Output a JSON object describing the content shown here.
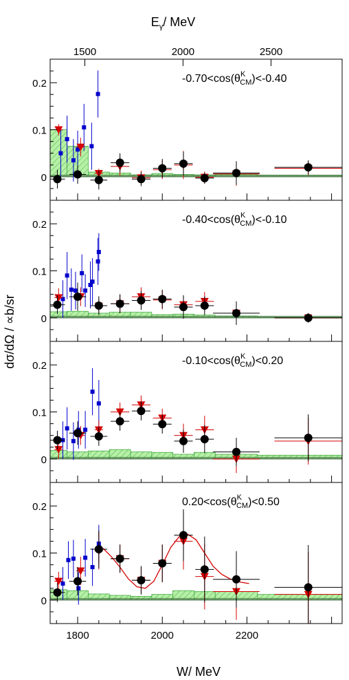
{
  "figure": {
    "top_axis_label": "E_γ / MeV",
    "x_label": "W/ MeV",
    "y_label": "dσ/dΩ / ∝b/sr"
  },
  "chart_data": {
    "type": "scatter",
    "x_axis": {
      "label": "W/ MeV",
      "range": [
        1735,
        2425
      ],
      "ticks": [
        1800,
        2000,
        2200
      ]
    },
    "top_axis": {
      "label": "E_γ / MeV",
      "ticks": [
        1500,
        2000,
        2500
      ],
      "tick_positions_W": [
        1817,
        2049,
        2257
      ]
    },
    "y_axis": {
      "label": "dσ/dΩ / ∝b/sr",
      "range": [
        -0.05,
        0.25
      ],
      "ticks": [
        0,
        0.1,
        0.2
      ]
    },
    "colors": {
      "black": "#000000",
      "red": "#d40000",
      "blue": "#0000cc",
      "green_fill": "#b6f0a6",
      "green_edge": "#44aa44",
      "dark_band": "#3b6b3b",
      "curve": "#d40000"
    },
    "panels": [
      {
        "label": "-0.70<cos(θ^K_CM)<-0.40",
        "label_parts": [
          "-0.70<cos(θ",
          "K",
          "CM",
          ")<-0.40"
        ],
        "black": [
          {
            "x": 1752,
            "y": -0.005,
            "xe": 18,
            "ye": 0.02
          },
          {
            "x": 1800,
            "y": 0.005,
            "xe": 20,
            "ye": 0.02
          },
          {
            "x": 1850,
            "y": -0.007,
            "xe": 20,
            "ye": 0.02
          },
          {
            "x": 1900,
            "y": 0.03,
            "xe": 22,
            "ye": 0.02
          },
          {
            "x": 1950,
            "y": -0.005,
            "xe": 22,
            "ye": 0.015
          },
          {
            "x": 2000,
            "y": 0.018,
            "xe": 22,
            "ye": 0.02
          },
          {
            "x": 2050,
            "y": 0.028,
            "xe": 22,
            "ye": 0.025
          },
          {
            "x": 2100,
            "y": -0.003,
            "xe": 22,
            "ye": 0.012
          },
          {
            "x": 2175,
            "y": 0.008,
            "xe": 55,
            "ye": 0.025
          },
          {
            "x": 2345,
            "y": 0.02,
            "xe": 80,
            "ye": 0.015
          }
        ],
        "red": [
          {
            "x": 1755,
            "y": 0.1,
            "xe": 10,
            "ye": 0.012
          },
          {
            "x": 1807,
            "y": 0.063,
            "xe": 10,
            "ye": 0.02
          },
          {
            "x": 1850,
            "y": 0.007,
            "xe": 10,
            "ye": 0.01
          },
          {
            "x": 1900,
            "y": 0.022,
            "xe": 22,
            "ye": 0.02
          },
          {
            "x": 1950,
            "y": -0.002,
            "xe": 22,
            "ye": 0.015
          },
          {
            "x": 2000,
            "y": 0.015,
            "xe": 22,
            "ye": 0.02
          },
          {
            "x": 2050,
            "y": 0.025,
            "xe": 22,
            "ye": 0.03
          },
          {
            "x": 2100,
            "y": -0.001,
            "xe": 22,
            "ye": 0.012
          },
          {
            "x": 2175,
            "y": 0.006,
            "xe": 55,
            "ye": 0.025
          },
          {
            "x": 2345,
            "y": 0.018,
            "xe": 80,
            "ye": 0.015
          }
        ],
        "blue": [
          {
            "x": 1760,
            "y": 0.05,
            "ye": 0.05
          },
          {
            "x": 1775,
            "y": 0.08,
            "ye": 0.05
          },
          {
            "x": 1790,
            "y": 0.035,
            "ye": 0.045
          },
          {
            "x": 1800,
            "y": 0.058,
            "ye": 0.04
          },
          {
            "x": 1815,
            "y": 0.105,
            "ye": 0.05
          },
          {
            "x": 1833,
            "y": 0.065,
            "ye": 0.05
          },
          {
            "x": 1848,
            "y": 0.176,
            "ye": 0.05
          }
        ],
        "band": [
          {
            "x0": 1735,
            "x1": 1775,
            "y": 0.1
          },
          {
            "x0": 1775,
            "x1": 1825,
            "y": 0.065
          },
          {
            "x0": 1825,
            "x1": 1875,
            "y": 0.01
          },
          {
            "x0": 1875,
            "x1": 1925,
            "y": 0.008
          },
          {
            "x0": 1925,
            "x1": 1975,
            "y": 0.004
          },
          {
            "x0": 1975,
            "x1": 2025,
            "y": 0.007
          },
          {
            "x0": 2025,
            "x1": 2075,
            "y": 0.005
          },
          {
            "x0": 2075,
            "x1": 2125,
            "y": 0.004
          },
          {
            "x0": 2125,
            "x1": 2225,
            "y": 0.005
          },
          {
            "x0": 2225,
            "x1": 2425,
            "y": 0.003
          }
        ],
        "curve": []
      },
      {
        "label": "-0.40<cos(θ^K_CM)<-0.10",
        "label_parts": [
          "-0.40<cos(θ",
          "K",
          "CM",
          ")<-0.10"
        ],
        "black": [
          {
            "x": 1752,
            "y": 0.028,
            "xe": 18,
            "ye": 0.02
          },
          {
            "x": 1800,
            "y": 0.045,
            "xe": 20,
            "ye": 0.03
          },
          {
            "x": 1850,
            "y": 0.026,
            "xe": 20,
            "ye": 0.02
          },
          {
            "x": 1900,
            "y": 0.03,
            "xe": 22,
            "ye": 0.02
          },
          {
            "x": 1950,
            "y": 0.037,
            "xe": 22,
            "ye": 0.02
          },
          {
            "x": 2000,
            "y": 0.04,
            "xe": 22,
            "ye": 0.02
          },
          {
            "x": 2050,
            "y": 0.023,
            "xe": 22,
            "ye": 0.025
          },
          {
            "x": 2100,
            "y": 0.026,
            "xe": 22,
            "ye": 0.02
          },
          {
            "x": 2175,
            "y": 0.01,
            "xe": 55,
            "ye": 0.025
          },
          {
            "x": 2345,
            "y": 0.0,
            "xe": 80,
            "ye": 0.01
          }
        ],
        "red": [
          {
            "x": 1755,
            "y": 0.043,
            "xe": 10,
            "ye": 0.02
          },
          {
            "x": 1807,
            "y": 0.045,
            "xe": 10,
            "ye": 0.02
          },
          {
            "x": 1850,
            "y": 0.025,
            "xe": 10,
            "ye": 0.015
          },
          {
            "x": 1900,
            "y": 0.03,
            "xe": 22,
            "ye": 0.02
          },
          {
            "x": 1950,
            "y": 0.045,
            "xe": 22,
            "ye": 0.02
          },
          {
            "x": 2000,
            "y": 0.038,
            "xe": 22,
            "ye": 0.02
          },
          {
            "x": 2050,
            "y": 0.028,
            "xe": 22,
            "ye": 0.02
          },
          {
            "x": 2100,
            "y": 0.035,
            "xe": 22,
            "ye": 0.02
          },
          {
            "x": 2175,
            "y": 0.01,
            "xe": 55,
            "ye": 0.025
          },
          {
            "x": 2345,
            "y": 0.0,
            "xe": 80,
            "ye": 0.01
          }
        ],
        "blue": [
          {
            "x": 1765,
            "y": 0.04,
            "ye": 0.04
          },
          {
            "x": 1775,
            "y": 0.09,
            "ye": 0.05
          },
          {
            "x": 1785,
            "y": 0.06,
            "ye": 0.045
          },
          {
            "x": 1795,
            "y": 0.058,
            "ye": 0.04
          },
          {
            "x": 1810,
            "y": 0.095,
            "ye": 0.04
          },
          {
            "x": 1818,
            "y": 0.058,
            "ye": 0.035
          },
          {
            "x": 1830,
            "y": 0.07,
            "ye": 0.05
          },
          {
            "x": 1835,
            "y": 0.077,
            "ye": 0.05
          },
          {
            "x": 1848,
            "y": 0.12,
            "ye": 0.05
          },
          {
            "x": 1850,
            "y": 0.14,
            "ye": 0.04
          }
        ],
        "band": [
          {
            "x0": 1735,
            "x1": 1775,
            "y": 0.013
          },
          {
            "x0": 1775,
            "x1": 1825,
            "y": 0.014
          },
          {
            "x0": 1825,
            "x1": 1875,
            "y": 0.01
          },
          {
            "x0": 1875,
            "x1": 1925,
            "y": 0.012
          },
          {
            "x0": 1925,
            "x1": 1975,
            "y": 0.012
          },
          {
            "x0": 1975,
            "x1": 2025,
            "y": 0.007
          },
          {
            "x0": 2025,
            "x1": 2075,
            "y": 0.008
          },
          {
            "x0": 2075,
            "x1": 2125,
            "y": 0.006
          },
          {
            "x0": 2125,
            "x1": 2225,
            "y": 0.004
          },
          {
            "x0": 2225,
            "x1": 2425,
            "y": 0.002
          }
        ],
        "curve": []
      },
      {
        "label": "-0.10<cos(θ^K_CM)<0.20",
        "label_parts": [
          "-0.10<cos(θ",
          "K",
          "CM",
          ")<0.20"
        ],
        "black": [
          {
            "x": 1752,
            "y": 0.04,
            "xe": 18,
            "ye": 0.02
          },
          {
            "x": 1800,
            "y": 0.055,
            "xe": 20,
            "ye": 0.025
          },
          {
            "x": 1850,
            "y": 0.048,
            "xe": 20,
            "ye": 0.02
          },
          {
            "x": 1900,
            "y": 0.08,
            "xe": 22,
            "ye": 0.02
          },
          {
            "x": 1950,
            "y": 0.102,
            "xe": 22,
            "ye": 0.02
          },
          {
            "x": 2000,
            "y": 0.074,
            "xe": 22,
            "ye": 0.02
          },
          {
            "x": 2050,
            "y": 0.038,
            "xe": 22,
            "ye": 0.025
          },
          {
            "x": 2100,
            "y": 0.042,
            "xe": 22,
            "ye": 0.03
          },
          {
            "x": 2175,
            "y": 0.015,
            "xe": 55,
            "ye": 0.03
          },
          {
            "x": 2345,
            "y": 0.045,
            "xe": 80,
            "ye": 0.05
          }
        ],
        "red": [
          {
            "x": 1755,
            "y": 0.02,
            "xe": 10,
            "ye": 0.02
          },
          {
            "x": 1807,
            "y": 0.05,
            "xe": 10,
            "ye": 0.02
          },
          {
            "x": 1850,
            "y": 0.062,
            "xe": 10,
            "ye": 0.02
          },
          {
            "x": 1900,
            "y": 0.1,
            "xe": 22,
            "ye": 0.02
          },
          {
            "x": 1950,
            "y": 0.115,
            "xe": 22,
            "ye": 0.02
          },
          {
            "x": 2000,
            "y": 0.087,
            "xe": 22,
            "ye": 0.02
          },
          {
            "x": 2050,
            "y": 0.05,
            "xe": 22,
            "ye": 0.025
          },
          {
            "x": 2100,
            "y": 0.062,
            "xe": 22,
            "ye": 0.03
          },
          {
            "x": 2175,
            "y": 0.0,
            "xe": 55,
            "ye": 0.03
          },
          {
            "x": 2345,
            "y": 0.038,
            "xe": 80,
            "ye": 0.05
          }
        ],
        "blue": [
          {
            "x": 1765,
            "y": 0.04,
            "ye": 0.04
          },
          {
            "x": 1775,
            "y": 0.065,
            "ye": 0.045
          },
          {
            "x": 1790,
            "y": 0.038,
            "ye": 0.04
          },
          {
            "x": 1802,
            "y": 0.062,
            "ye": 0.04
          },
          {
            "x": 1818,
            "y": 0.062,
            "ye": 0.04
          },
          {
            "x": 1835,
            "y": 0.143,
            "ye": 0.05
          },
          {
            "x": 1850,
            "y": 0.118,
            "ye": 0.05
          }
        ],
        "band": [
          {
            "x0": 1735,
            "x1": 1775,
            "y": 0.018
          },
          {
            "x0": 1775,
            "x1": 1825,
            "y": 0.015
          },
          {
            "x0": 1825,
            "x1": 1875,
            "y": 0.017
          },
          {
            "x0": 1875,
            "x1": 1925,
            "y": 0.02
          },
          {
            "x0": 1925,
            "x1": 1975,
            "y": 0.015
          },
          {
            "x0": 1975,
            "x1": 2025,
            "y": 0.014
          },
          {
            "x0": 2025,
            "x1": 2075,
            "y": 0.01
          },
          {
            "x0": 2075,
            "x1": 2125,
            "y": 0.014
          },
          {
            "x0": 2125,
            "x1": 2225,
            "y": 0.01
          },
          {
            "x0": 2225,
            "x1": 2425,
            "y": 0.008
          }
        ],
        "curve": []
      },
      {
        "label": "0.20<cos(θ^K_CM)<0.50",
        "label_parts": [
          "0.20<cos(θ",
          "K",
          "CM",
          ")<0.50"
        ],
        "black": [
          {
            "x": 1752,
            "y": 0.016,
            "xe": 18,
            "ye": 0.02
          },
          {
            "x": 1800,
            "y": 0.04,
            "xe": 20,
            "ye": 0.03
          },
          {
            "x": 1850,
            "y": 0.108,
            "xe": 20,
            "ye": 0.04
          },
          {
            "x": 1900,
            "y": 0.088,
            "xe": 22,
            "ye": 0.03
          },
          {
            "x": 1950,
            "y": 0.042,
            "xe": 22,
            "ye": 0.03
          },
          {
            "x": 2000,
            "y": 0.078,
            "xe": 22,
            "ye": 0.04
          },
          {
            "x": 2050,
            "y": 0.138,
            "xe": 22,
            "ye": 0.055
          },
          {
            "x": 2100,
            "y": 0.065,
            "xe": 22,
            "ye": 0.07
          },
          {
            "x": 2175,
            "y": 0.044,
            "xe": 55,
            "ye": 0.06
          },
          {
            "x": 2345,
            "y": 0.027,
            "xe": 80,
            "ye": 0.09
          }
        ],
        "red": [
          {
            "x": 1755,
            "y": 0.04,
            "xe": 10,
            "ye": 0.02
          },
          {
            "x": 1807,
            "y": 0.062,
            "xe": 10,
            "ye": 0.03
          },
          {
            "x": 1850,
            "y": 0.105,
            "xe": 10,
            "ye": 0.04
          },
          {
            "x": 1900,
            "y": 0.088,
            "xe": 22,
            "ye": 0.03
          },
          {
            "x": 1950,
            "y": 0.042,
            "xe": 22,
            "ye": 0.03
          },
          {
            "x": 2000,
            "y": 0.078,
            "xe": 22,
            "ye": 0.04
          },
          {
            "x": 2050,
            "y": 0.125,
            "xe": 22,
            "ye": 0.06
          },
          {
            "x": 2100,
            "y": 0.05,
            "xe": 22,
            "ye": 0.07
          },
          {
            "x": 2175,
            "y": 0.018,
            "xe": 55,
            "ye": 0.06
          },
          {
            "x": 2345,
            "y": 0.012,
            "xe": 80,
            "ye": 0.09
          }
        ],
        "blue": [
          {
            "x": 1765,
            "y": 0.035,
            "ye": 0.035
          },
          {
            "x": 1778,
            "y": 0.085,
            "ye": 0.04
          },
          {
            "x": 1790,
            "y": 0.088,
            "ye": 0.04
          },
          {
            "x": 1802,
            "y": 0.025,
            "ye": 0.035
          },
          {
            "x": 1818,
            "y": 0.09,
            "ye": 0.04
          },
          {
            "x": 1835,
            "y": 0.07,
            "ye": 0.04
          },
          {
            "x": 1850,
            "y": 0.12,
            "ye": 0.04
          }
        ],
        "band": [
          {
            "x0": 1735,
            "x1": 1775,
            "y": 0.022
          },
          {
            "x0": 1775,
            "x1": 1825,
            "y": 0.02
          },
          {
            "x0": 1825,
            "x1": 1875,
            "y": 0.013
          },
          {
            "x0": 1875,
            "x1": 1925,
            "y": 0.01
          },
          {
            "x0": 1925,
            "x1": 1975,
            "y": 0.008
          },
          {
            "x0": 1975,
            "x1": 2025,
            "y": 0.012
          },
          {
            "x0": 2025,
            "x1": 2075,
            "y": 0.02
          },
          {
            "x0": 2075,
            "x1": 2125,
            "y": 0.018
          },
          {
            "x0": 2125,
            "x1": 2225,
            "y": 0.018
          },
          {
            "x0": 2225,
            "x1": 2425,
            "y": 0.012
          }
        ],
        "curve": [
          {
            "x": 1860,
            "y": 0.11
          },
          {
            "x": 1880,
            "y": 0.092
          },
          {
            "x": 1900,
            "y": 0.07
          },
          {
            "x": 1920,
            "y": 0.045
          },
          {
            "x": 1940,
            "y": 0.028
          },
          {
            "x": 1960,
            "y": 0.025
          },
          {
            "x": 1980,
            "y": 0.04
          },
          {
            "x": 2000,
            "y": 0.075
          },
          {
            "x": 2020,
            "y": 0.112
          },
          {
            "x": 2040,
            "y": 0.135
          },
          {
            "x": 2060,
            "y": 0.14
          },
          {
            "x": 2080,
            "y": 0.128
          },
          {
            "x": 2100,
            "y": 0.1
          },
          {
            "x": 2120,
            "y": 0.072
          },
          {
            "x": 2140,
            "y": 0.055
          },
          {
            "x": 2160,
            "y": 0.045
          },
          {
            "x": 2185,
            "y": 0.038
          },
          {
            "x": 2205,
            "y": 0.035
          }
        ]
      }
    ]
  }
}
